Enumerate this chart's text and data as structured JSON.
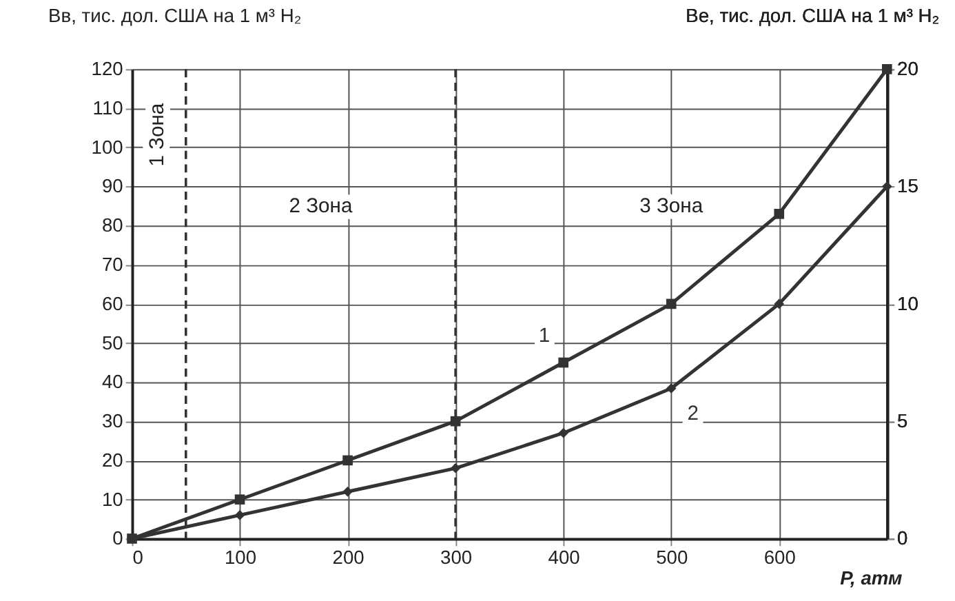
{
  "chart_data": {
    "type": "line",
    "xlabel": "P, атм",
    "ylabel": "Bв, тис. дол. США на 1 м³ H₂",
    "y2label": "Bе, тис. дол. США на 1 м³ H₂",
    "x": [
      0,
      100,
      200,
      300,
      400,
      500,
      600,
      700
    ],
    "series": [
      {
        "name": "1",
        "color": "#333333",
        "marker": "square",
        "values": [
          0,
          10,
          20,
          30,
          45,
          60,
          83,
          120
        ]
      },
      {
        "name": "2",
        "color": "#333333",
        "marker": "diamond",
        "axis": "y2",
        "values": [
          0,
          1,
          2,
          3,
          4.5,
          6.4,
          10,
          15
        ]
      }
    ],
    "xlim": [
      0,
      700
    ],
    "xticks": [
      0,
      100,
      200,
      300,
      400,
      500,
      600
    ],
    "ylim": [
      0,
      120
    ],
    "yticks": [
      0,
      10,
      20,
      30,
      40,
      50,
      60,
      70,
      80,
      90,
      100,
      110,
      120
    ],
    "y2lim": [
      0,
      20
    ],
    "y2ticks": [
      0,
      5,
      10,
      15,
      20
    ],
    "grid": true,
    "line_style": "solid",
    "ref_lines": [
      {
        "axis": "x",
        "value": 50,
        "line_style": "dashed",
        "color": "#333333"
      },
      {
        "axis": "x",
        "value": 300,
        "line_style": "dashed",
        "color": "#333333"
      }
    ],
    "annotations": [
      "1 Зона",
      "2 Зона",
      "3 Зона"
    ]
  }
}
